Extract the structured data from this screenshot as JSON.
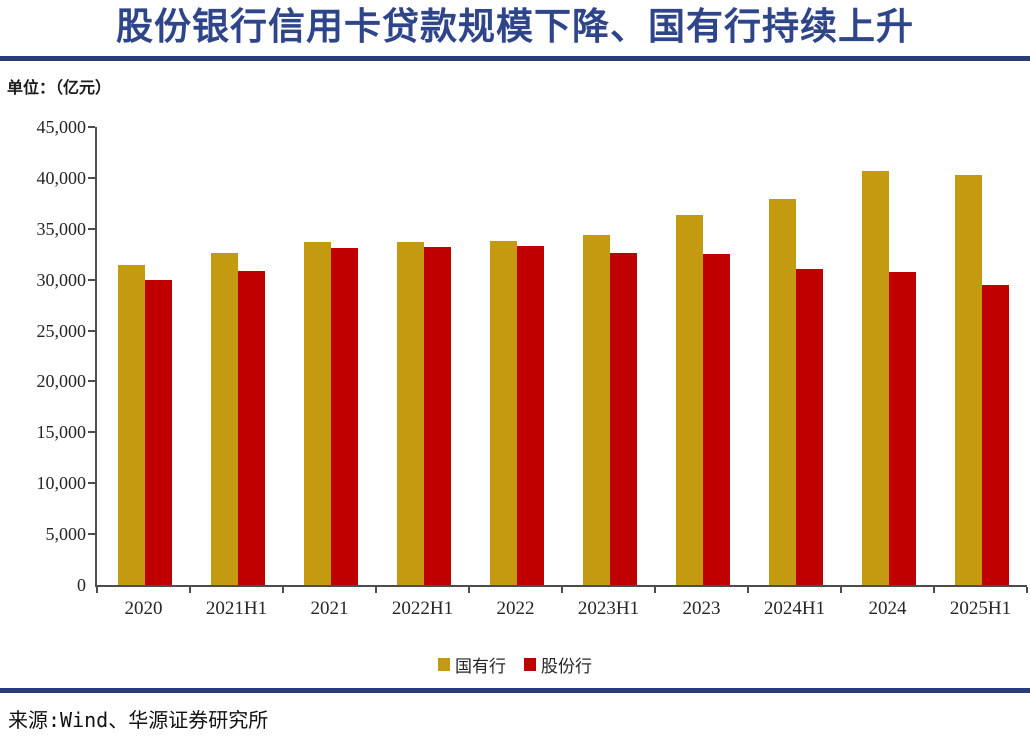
{
  "title": "股份银行信用卡贷款规模下降、国有行持续上升",
  "unit_label": "单位：（亿元）",
  "source": "来源:Wind、华源证券研究所",
  "colors": {
    "gold": "#C39A10",
    "red": "#C00000",
    "title_blue": "#2E4589",
    "rule_blue": "#2A3C78",
    "axis_gray": "#4d4d4d"
  },
  "chart_data": {
    "type": "bar",
    "categories": [
      "2020",
      "2021H1",
      "2021",
      "2022H1",
      "2022",
      "2023H1",
      "2023",
      "2024H1",
      "2024",
      "2025H1"
    ],
    "series": [
      {
        "name": "国有行",
        "color": "#C39A10",
        "values": [
          31400,
          32600,
          33700,
          33700,
          33800,
          34400,
          36400,
          37900,
          40700,
          40300
        ]
      },
      {
        "name": "股份行",
        "color": "#C00000",
        "values": [
          30000,
          30900,
          33100,
          33200,
          33300,
          32600,
          32500,
          31000,
          30800,
          29500
        ]
      }
    ],
    "title": "股份银行信用卡贷款规模下降、国有行持续上升",
    "xlabel": "",
    "ylabel": "单位：（亿元）",
    "ylim": [
      0,
      45000
    ],
    "ytick_step": 5000,
    "ytick_labels": [
      "0",
      "5,000",
      "10,000",
      "15,000",
      "20,000",
      "25,000",
      "30,000",
      "35,000",
      "40,000",
      "45,000"
    ],
    "grid": false,
    "legend_position": "bottom"
  }
}
